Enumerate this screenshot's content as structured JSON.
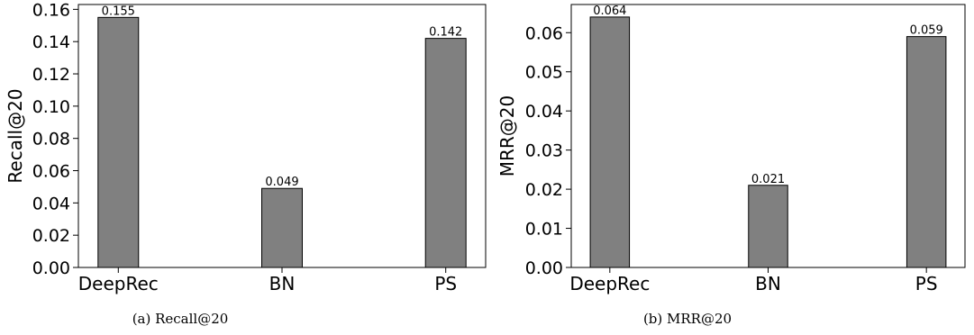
{
  "colors": {
    "bar": "#808080",
    "edge": "#000000",
    "background": "#ffffff"
  },
  "chart_data": [
    {
      "type": "bar",
      "caption": "(a) Recall@20",
      "categories": [
        "DeepRec",
        "BN",
        "PS"
      ],
      "values": [
        0.155,
        0.049,
        0.142
      ],
      "value_labels": [
        "0.155",
        "0.049",
        "0.142"
      ],
      "ylabel": "Recall@20",
      "xlabel": "",
      "ylim": [
        0,
        0.163
      ],
      "yticks": [
        0.0,
        0.02,
        0.04,
        0.06,
        0.08,
        0.1,
        0.12,
        0.14,
        0.16
      ],
      "ytick_labels": [
        "0.00",
        "0.02",
        "0.04",
        "0.06",
        "0.08",
        "0.10",
        "0.12",
        "0.14",
        "0.16"
      ],
      "grid": false
    },
    {
      "type": "bar",
      "caption": "(b) MRR@20",
      "categories": [
        "DeepRec",
        "BN",
        "PS"
      ],
      "values": [
        0.064,
        0.021,
        0.059
      ],
      "value_labels": [
        "0.064",
        "0.021",
        "0.059"
      ],
      "ylabel": "MRR@20",
      "xlabel": "",
      "ylim": [
        0,
        0.0672
      ],
      "yticks": [
        0.0,
        0.01,
        0.02,
        0.03,
        0.04,
        0.05,
        0.06
      ],
      "ytick_labels": [
        "0.00",
        "0.01",
        "0.02",
        "0.03",
        "0.04",
        "0.05",
        "0.06"
      ],
      "grid": false
    }
  ]
}
